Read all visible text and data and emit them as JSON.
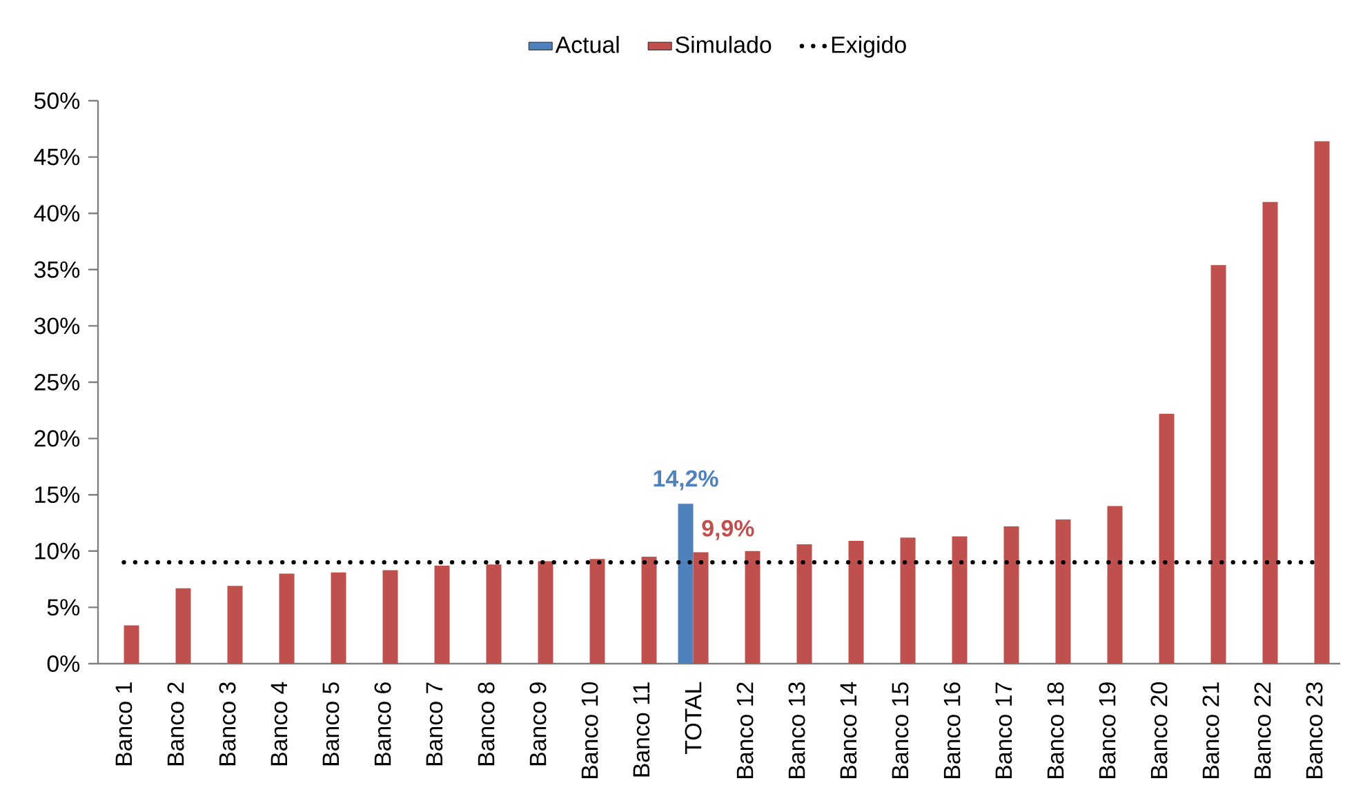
{
  "chart_data": {
    "type": "bar",
    "categories": [
      "Banco 1",
      "Banco 2",
      "Banco 3",
      "Banco 4",
      "Banco 5",
      "Banco 6",
      "Banco 7",
      "Banco 8",
      "Banco 9",
      "Banco 10",
      "Banco 11",
      "TOTAL",
      "Banco 12",
      "Banco 13",
      "Banco 14",
      "Banco 15",
      "Banco 16",
      "Banco 17",
      "Banco 18",
      "Banco 19",
      "Banco 20",
      "Banco 21",
      "Banco 22",
      "Banco 23"
    ],
    "series": [
      {
        "name": "Actual",
        "color": "#4f81bd",
        "values": [
          null,
          null,
          null,
          null,
          null,
          null,
          null,
          null,
          null,
          null,
          null,
          14.2,
          null,
          null,
          null,
          null,
          null,
          null,
          null,
          null,
          null,
          null,
          null,
          null
        ],
        "value_labels": [
          null,
          null,
          null,
          null,
          null,
          null,
          null,
          null,
          null,
          null,
          null,
          "14,2%",
          null,
          null,
          null,
          null,
          null,
          null,
          null,
          null,
          null,
          null,
          null,
          null
        ]
      },
      {
        "name": "Simulado",
        "color": "#c0504d",
        "values": [
          3.4,
          6.7,
          6.9,
          8.0,
          8.1,
          8.3,
          8.7,
          8.8,
          9.1,
          9.3,
          9.5,
          9.9,
          10.0,
          10.6,
          10.9,
          11.2,
          11.3,
          12.2,
          12.8,
          14.0,
          22.2,
          35.4,
          41.0,
          46.4
        ],
        "value_labels": [
          null,
          null,
          null,
          null,
          null,
          null,
          null,
          null,
          null,
          null,
          null,
          "9,9%",
          null,
          null,
          null,
          null,
          null,
          null,
          null,
          null,
          null,
          null,
          null,
          null
        ]
      },
      {
        "name": "Exigido",
        "type": "line",
        "color": "#000000",
        "values": [
          9,
          9,
          9,
          9,
          9,
          9,
          9,
          9,
          9,
          9,
          9,
          9,
          9,
          9,
          9,
          9,
          9,
          9,
          9,
          9,
          9,
          9,
          9,
          9
        ]
      }
    ],
    "ylim": [
      0,
      50
    ],
    "yticks": [
      {
        "value": 0,
        "label": "0%"
      },
      {
        "value": 5,
        "label": "5%"
      },
      {
        "value": 10,
        "label": "10%"
      },
      {
        "value": 15,
        "label": "15%"
      },
      {
        "value": 20,
        "label": "20%"
      },
      {
        "value": 25,
        "label": "25%"
      },
      {
        "value": 30,
        "label": "30%"
      },
      {
        "value": 35,
        "label": "35%"
      },
      {
        "value": 40,
        "label": "40%"
      },
      {
        "value": 45,
        "label": "45%"
      },
      {
        "value": 50,
        "label": "50%"
      }
    ],
    "legend": "top",
    "grid": false,
    "marker": "none",
    "line_style": "dotted"
  }
}
